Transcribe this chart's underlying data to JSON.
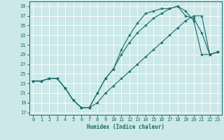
{
  "xlabel": "Humidex (Indice chaleur)",
  "bg_color": "#cce8e8",
  "line_color": "#1a6b6b",
  "grid_color": "#ffffff",
  "xlim": [
    -0.5,
    23.5
  ],
  "ylim": [
    16.5,
    40
  ],
  "xticks": [
    0,
    1,
    2,
    3,
    4,
    5,
    6,
    7,
    8,
    9,
    10,
    11,
    12,
    13,
    14,
    15,
    16,
    17,
    18,
    19,
    20,
    21,
    22,
    23
  ],
  "yticks": [
    17,
    19,
    21,
    23,
    25,
    27,
    29,
    31,
    33,
    35,
    37,
    39
  ],
  "line1_x": [
    0,
    1,
    2,
    3,
    4,
    5,
    6,
    7,
    8,
    9,
    10,
    11,
    12,
    13,
    14,
    15,
    16,
    17,
    18,
    19,
    20,
    21,
    22,
    23
  ],
  "line1_y": [
    23.5,
    23.5,
    24,
    24,
    22,
    19.5,
    18,
    18,
    21,
    24,
    26,
    30,
    33,
    35.5,
    37.5,
    38,
    38.5,
    38.5,
    39,
    38,
    36,
    29,
    29,
    29.5
  ],
  "line2_x": [
    0,
    1,
    2,
    3,
    4,
    5,
    6,
    7,
    8,
    9,
    10,
    11,
    12,
    13,
    14,
    15,
    16,
    17,
    18,
    19,
    20,
    21,
    22,
    23
  ],
  "line2_y": [
    23.5,
    23.5,
    24,
    24,
    22,
    19.5,
    18,
    18,
    21,
    24,
    26,
    29,
    31.5,
    33.5,
    35,
    36.5,
    37.5,
    38.5,
    39,
    37,
    36.5,
    33.5,
    29,
    29.5
  ],
  "line3_x": [
    0,
    1,
    2,
    3,
    4,
    5,
    6,
    7,
    8,
    9,
    10,
    11,
    12,
    13,
    14,
    15,
    16,
    17,
    18,
    19,
    20,
    21,
    22,
    23
  ],
  "line3_y": [
    23.5,
    23.5,
    24,
    24,
    22,
    19.5,
    18,
    18,
    19,
    21,
    22.5,
    24,
    25.5,
    27,
    28.5,
    30,
    31.5,
    33,
    34.5,
    36,
    37,
    37,
    29,
    29.5
  ]
}
